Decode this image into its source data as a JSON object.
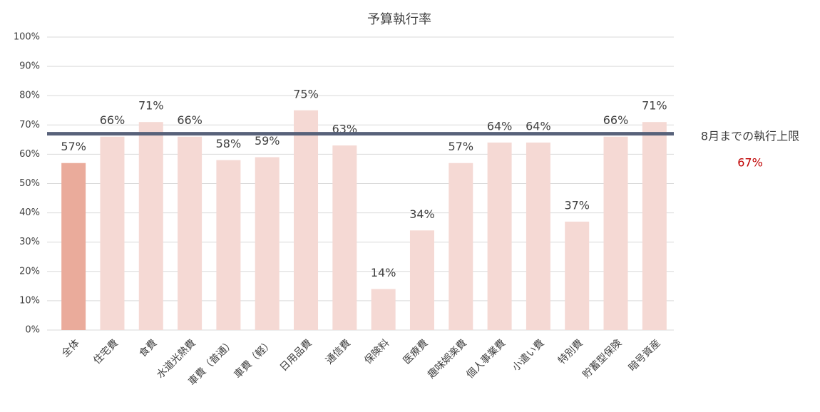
{
  "chart_data": {
    "type": "bar",
    "title": "予算執行率",
    "categories": [
      "全体",
      "住宅費",
      "食費",
      "水道光熱費",
      "車費（普通）",
      "車費（軽）",
      "日用品費",
      "通信費",
      "保険料",
      "医療費",
      "趣味娯楽費",
      "個人事業費",
      "小遣い費",
      "特別費",
      "貯蓄型保険",
      "暗号資産"
    ],
    "values": [
      57,
      66,
      71,
      66,
      58,
      59,
      75,
      63,
      14,
      34,
      57,
      64,
      64,
      37,
      66,
      71
    ],
    "value_labels": [
      "57%",
      "66%",
      "71%",
      "66%",
      "58%",
      "59%",
      "75%",
      "63%",
      "14%",
      "34%",
      "57%",
      "64%",
      "64%",
      "37%",
      "66%",
      "71%"
    ],
    "colors": [
      "#eaab9b",
      "#f5d9d4",
      "#f5d9d4",
      "#f5d9d4",
      "#f5d9d4",
      "#f5d9d4",
      "#f5d9d4",
      "#f5d9d4",
      "#f5d9d4",
      "#f5d9d4",
      "#f5d9d4",
      "#f5d9d4",
      "#f5d9d4",
      "#f5d9d4",
      "#f5d9d4",
      "#f5d9d4"
    ],
    "ylim": [
      0,
      100
    ],
    "yticks": [
      {
        "value": 0,
        "label": "0%"
      },
      {
        "value": 10,
        "label": "10%"
      },
      {
        "value": 20,
        "label": "20%"
      },
      {
        "value": 30,
        "label": "30%"
      },
      {
        "value": 40,
        "label": "40%"
      },
      {
        "value": 50,
        "label": "50%"
      },
      {
        "value": 60,
        "label": "60%"
      },
      {
        "value": 70,
        "label": "70%"
      },
      {
        "value": 80,
        "label": "80%"
      },
      {
        "value": 90,
        "label": "90%"
      },
      {
        "value": 100,
        "label": "100%"
      }
    ],
    "grid": true,
    "reference_line": {
      "value": 67,
      "label": "8月までの執行上限",
      "value_label": "67%",
      "color": "#58627a",
      "value_label_color": "#c00000"
    }
  }
}
